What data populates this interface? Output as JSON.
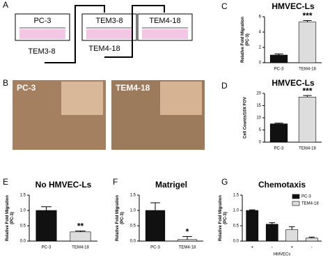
{
  "panel_labels": [
    "A",
    "B",
    "C",
    "D",
    "E",
    "F",
    "G"
  ],
  "diagram": {
    "wells": [
      "PC-3",
      "TEM3-8",
      "TEM4-18"
    ],
    "outputs": [
      "TEM3-8",
      "TEM4-18"
    ]
  },
  "images": [
    {
      "label": "PC-3"
    },
    {
      "label": "TEM4-18"
    }
  ],
  "chart_data": [
    {
      "type": "bar",
      "title": "HMVEC-Ls",
      "ylabel": [
        "Relative Fold Migration",
        "(PC-3)"
      ],
      "categories": [
        "PC-3",
        "TEM4-18"
      ],
      "values": [
        1.0,
        5.3
      ],
      "errors": [
        0.15,
        0.2
      ],
      "colors": [
        "#111111",
        "#dddddd"
      ],
      "ylim": [
        0,
        6
      ],
      "yticks": [
        0,
        2,
        4,
        6
      ],
      "annotations": [
        {
          "text": "***",
          "category": "TEM4-18"
        }
      ]
    },
    {
      "type": "bar",
      "title": "HMVEC-Ls",
      "ylabel": [
        "Cell Counts/10X FOV"
      ],
      "categories": [
        "PC-3",
        "TEM4-18"
      ],
      "values": [
        7.5,
        18.5
      ],
      "errors": [
        0.3,
        0.6
      ],
      "colors": [
        "#111111",
        "#dddddd"
      ],
      "ylim": [
        0,
        20
      ],
      "yticks": [
        0,
        5,
        10,
        15,
        20
      ],
      "annotations": [
        {
          "text": "***",
          "category": "TEM4-18"
        }
      ]
    },
    {
      "type": "bar",
      "title": "No HMVEC-Ls",
      "ylabel": [
        "Relative Fold Migration",
        "(PC-3)"
      ],
      "categories": [
        "PC-3",
        "TEM4-18"
      ],
      "values": [
        1.0,
        0.3
      ],
      "errors": [
        0.12,
        0.03
      ],
      "colors": [
        "#111111",
        "#dddddd"
      ],
      "ylim": [
        0,
        1.5
      ],
      "yticks": [
        {
          "value": 0,
          "label": "0.0"
        },
        0.5,
        {
          "value": 1,
          "label": "1.0"
        },
        1.5
      ],
      "annotations": [
        {
          "text": "**",
          "category": "TEM4-18"
        }
      ]
    },
    {
      "type": "bar",
      "title": "Matrigel",
      "ylabel": [
        "Relative Fold Migration",
        "(PC-3)"
      ],
      "categories": [
        "PC-3",
        "TEM4-18"
      ],
      "values": [
        1.0,
        0.05
      ],
      "errors": [
        0.25,
        0.1
      ],
      "colors": [
        "#111111",
        "#dddddd"
      ],
      "ylim": [
        0,
        1.5
      ],
      "yticks": [
        {
          "value": 0,
          "label": "0.0"
        },
        0.5,
        {
          "value": 1,
          "label": "1.0"
        },
        1.5
      ],
      "annotations": [
        {
          "text": "*",
          "category": "TEM4-18"
        }
      ]
    },
    {
      "type": "bar",
      "title": "Chemotaxis",
      "ylabel": [
        "Relative Fold Migration",
        "(PC-3)"
      ],
      "xlabel": "HMVECs",
      "categories": [
        "+",
        "-",
        "+",
        "-"
      ],
      "legend": "upper right",
      "series": [
        {
          "name": "PC-3",
          "color": "#111111",
          "values": [
            1.0,
            0.55,
            null,
            null
          ],
          "errors": [
            0.02,
            0.05,
            null,
            null
          ]
        },
        {
          "name": "TEM4-18",
          "color": "#dddddd",
          "values": [
            null,
            null,
            0.37,
            0.1
          ],
          "errors": [
            null,
            null,
            0.1,
            0.03
          ]
        }
      ],
      "ylim": [
        0,
        1.5
      ],
      "yticks": [
        {
          "value": 0,
          "label": "0.0"
        },
        0.5,
        {
          "value": 1,
          "label": "1.0"
        },
        1.5
      ]
    }
  ]
}
